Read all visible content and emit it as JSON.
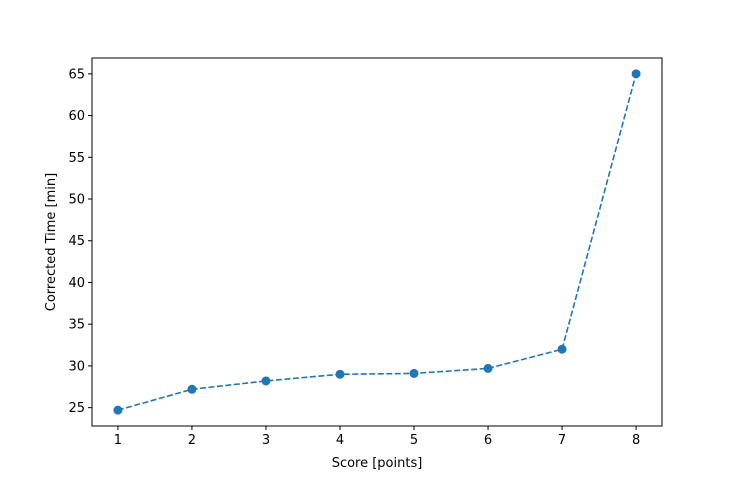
{
  "chart_data": {
    "type": "line",
    "title": "",
    "xlabel": "Score [points]",
    "ylabel": "Corrected Time [min]",
    "x": [
      1,
      2,
      3,
      4,
      5,
      6,
      7,
      8
    ],
    "series": [
      {
        "values": [
          24.7,
          27.2,
          28.2,
          29.0,
          29.1,
          29.7,
          32.0,
          65.0
        ],
        "color": "#1f77b4",
        "linestyle": "dashed",
        "marker": "circle"
      }
    ],
    "xlim": [
      0.65,
      8.35
    ],
    "ylim": [
      22.8,
      66.9
    ],
    "xticks": [
      1,
      2,
      3,
      4,
      5,
      6,
      7,
      8
    ],
    "yticks": [
      25,
      30,
      35,
      40,
      45,
      50,
      55,
      60,
      65
    ],
    "grid": false
  }
}
